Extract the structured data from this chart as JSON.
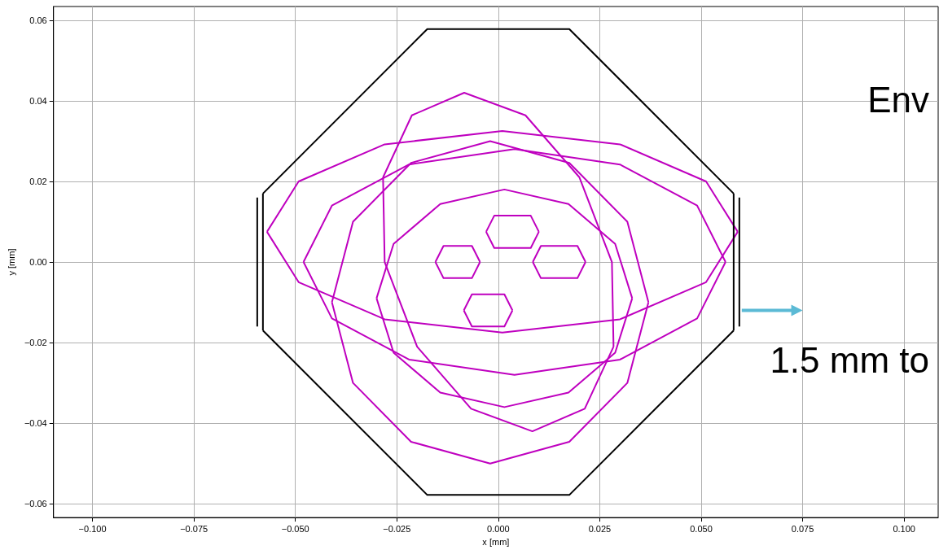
{
  "chart_data": {
    "type": "line",
    "xlabel": "x [mm]",
    "ylabel": "y [mm]",
    "xlim": [
      -0.1096,
      0.1084
    ],
    "ylim": [
      -0.0634,
      0.0634
    ],
    "xticks": [
      {
        "value": -0.1,
        "label": "−0.100"
      },
      {
        "value": -0.075,
        "label": "−0.075"
      },
      {
        "value": -0.05,
        "label": "−0.050"
      },
      {
        "value": -0.025,
        "label": "−0.025"
      },
      {
        "value": 0,
        "label": "0.000"
      },
      {
        "value": 0.025,
        "label": "0.025"
      },
      {
        "value": 0.05,
        "label": "0.050"
      },
      {
        "value": 0.075,
        "label": "0.075"
      },
      {
        "value": 0.1,
        "label": "0.100"
      }
    ],
    "yticks": [
      {
        "value": -0.06,
        "label": "−0.06"
      },
      {
        "value": -0.04,
        "label": "−0.04"
      },
      {
        "value": -0.02,
        "label": "−0.02"
      },
      {
        "value": 0,
        "label": "0.00"
      },
      {
        "value": 0.02,
        "label": "0.02"
      },
      {
        "value": 0.04,
        "label": "0.04"
      },
      {
        "value": 0.06,
        "label": "0.06"
      }
    ],
    "grid": true,
    "marker": "none",
    "line_style": "solid",
    "annotations": [
      "Env",
      "1.5 mm to"
    ],
    "series": [
      {
        "color": "#000000",
        "x": [
          -0.058,
          -0.0175,
          0.0175,
          0.058
        ],
        "values": [
          0.017,
          0.0578,
          0.0578,
          0.017
        ]
      },
      {
        "color": "#000000",
        "x": [
          -0.058,
          -0.0175,
          0.0175,
          0.058
        ],
        "values": [
          -0.017,
          -0.0578,
          -0.0578,
          -0.017
        ]
      },
      {
        "color": "#000000",
        "x": [
          -0.058,
          -0.058
        ],
        "values": [
          0.017,
          -0.017
        ]
      },
      {
        "color": "#000000",
        "x": [
          0.058,
          0.058
        ],
        "values": [
          0.017,
          -0.017
        ]
      },
      {
        "color": "#000000",
        "x": [
          -0.0594,
          -0.0594
        ],
        "values": [
          0.016,
          -0.016
        ]
      },
      {
        "color": "#000000",
        "x": [
          0.0594,
          0.0594
        ],
        "values": [
          0.016,
          -0.016
        ]
      },
      {
        "color": "#bf00bf",
        "x": [
          -0.057,
          -0.0492,
          -0.028,
          0.001,
          0.03,
          0.0512,
          0.059
        ],
        "values": [
          0.0075,
          0.02,
          0.0292,
          0.0325,
          0.0292,
          0.02,
          0.0075
        ]
      },
      {
        "color": "#bf00bf",
        "x": [
          -0.057,
          -0.0492,
          -0.028,
          0.001,
          0.03,
          0.0512,
          0.059
        ],
        "values": [
          0.0075,
          -0.005,
          -0.0142,
          -0.0175,
          -0.0142,
          -0.005,
          0.0075
        ]
      },
      {
        "color": "#bf00bf",
        "x": [
          -0.048,
          -0.041,
          -0.022,
          0.004,
          0.03,
          0.049,
          0.056
        ],
        "values": [
          0,
          0.014,
          0.0242,
          0.028,
          0.0242,
          0.014,
          0
        ]
      },
      {
        "color": "#bf00bf",
        "x": [
          -0.048,
          -0.041,
          -0.022,
          0.004,
          0.03,
          0.049,
          0.056
        ],
        "values": [
          0,
          -0.014,
          -0.0242,
          -0.028,
          -0.0242,
          -0.014,
          0
        ]
      },
      {
        "color": "#bf00bf",
        "x": [
          -0.041,
          -0.0358,
          -0.0215,
          -0.002,
          0.0175,
          0.0318,
          0.037
        ],
        "values": [
          -0.01,
          0.01,
          0.0246,
          0.03,
          0.0246,
          0.01,
          -0.01
        ]
      },
      {
        "color": "#bf00bf",
        "x": [
          -0.041,
          -0.0358,
          -0.0215,
          -0.002,
          0.0175,
          0.0318,
          0.037
        ],
        "values": [
          -0.01,
          -0.03,
          -0.0446,
          -0.05,
          -0.0446,
          -0.03,
          -0.01
        ]
      },
      {
        "color": "#bf00bf",
        "x": [
          -0.03,
          -0.0258,
          -0.0143,
          0.0015,
          0.0173,
          0.0288,
          0.033
        ],
        "values": [
          -0.009,
          0.0045,
          0.0144,
          0.018,
          0.0144,
          0.0045,
          -0.009
        ]
      },
      {
        "color": "#bf00bf",
        "x": [
          -0.03,
          -0.0258,
          -0.0143,
          0.0015,
          0.0173,
          0.0288,
          0.033
        ],
        "values": [
          -0.009,
          -0.0225,
          -0.0324,
          -0.036,
          -0.0324,
          -0.0225,
          -0.009
        ]
      },
      {
        "color": "#bf00bf",
        "x": [
          -0.0284,
          -0.0213,
          -0.0084,
          0.0067,
          0.02,
          0.028,
          0.0284
        ],
        "values": [
          0.021,
          0.0364,
          0.042,
          0.0364,
          0.021,
          0,
          -0.021
        ]
      },
      {
        "color": "#bf00bf",
        "x": [
          -0.0284,
          -0.028,
          -0.02,
          -0.0067,
          0.0084,
          0.0213,
          0.0284
        ],
        "values": [
          0.021,
          0,
          -0.021,
          -0.0364,
          -0.042,
          -0.0364,
          -0.021
        ]
      },
      {
        "color": "#bf00bf",
        "x": [
          -0.003,
          -0.001,
          0.008,
          0.01
        ],
        "values": [
          0.0075,
          0.0115,
          0.0115,
          0.0075
        ]
      },
      {
        "color": "#bf00bf",
        "x": [
          -0.003,
          -0.001,
          0.008,
          0.01
        ],
        "values": [
          0.0075,
          0.0035,
          0.0035,
          0.0075
        ]
      },
      {
        "color": "#bf00bf",
        "x": [
          -0.0155,
          -0.0135,
          -0.0065,
          -0.0045
        ],
        "values": [
          0,
          0.004,
          0.004,
          0
        ]
      },
      {
        "color": "#bf00bf",
        "x": [
          -0.0155,
          -0.0135,
          -0.0065,
          -0.0045
        ],
        "values": [
          0,
          -0.004,
          -0.004,
          0
        ]
      },
      {
        "color": "#bf00bf",
        "x": [
          0.0085,
          0.0105,
          0.0195,
          0.0215
        ],
        "values": [
          0,
          0.004,
          0.004,
          0
        ]
      },
      {
        "color": "#bf00bf",
        "x": [
          0.0085,
          0.0105,
          0.0195,
          0.0215
        ],
        "values": [
          0,
          -0.004,
          -0.004,
          0
        ]
      },
      {
        "color": "#bf00bf",
        "x": [
          -0.0085,
          -0.0065,
          0.0015,
          0.0035
        ],
        "values": [
          -0.012,
          -0.008,
          -0.008,
          -0.012
        ]
      },
      {
        "color": "#bf00bf",
        "x": [
          -0.0085,
          -0.0065,
          0.0015,
          0.0035
        ],
        "values": [
          -0.012,
          -0.016,
          -0.016,
          -0.012
        ]
      }
    ]
  }
}
